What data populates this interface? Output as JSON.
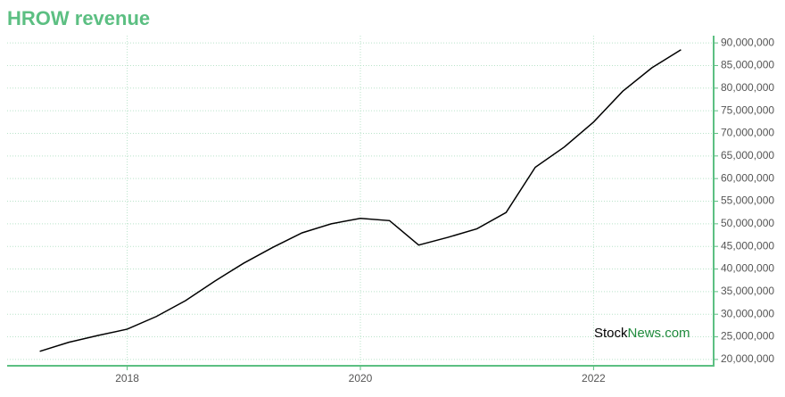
{
  "chart_data": {
    "type": "line",
    "title": "HROW revenue",
    "x": [
      2017.25,
      2017.5,
      2017.75,
      2018,
      2018.25,
      2018.5,
      2018.75,
      2019,
      2019.25,
      2019.5,
      2019.75,
      2020,
      2020.25,
      2020.5,
      2020.75,
      2021,
      2021.25,
      2021.5,
      2021.75,
      2022,
      2022.25,
      2022.5,
      2022.75
    ],
    "series": [
      {
        "color": "#000000",
        "values": [
          21800000,
          23800000,
          25300000,
          26700000,
          29500000,
          33000000,
          37300000,
          41300000,
          44800000,
          48000000,
          50000000,
          51200000,
          50700000,
          45300000,
          47000000,
          48900000,
          52500000,
          62500000,
          67000000,
          72500000,
          79300000,
          84500000,
          88500000
        ]
      }
    ],
    "xlim": [
      2016.97,
      2023.03
    ],
    "xticks": [
      2018,
      2020,
      2022
    ],
    "ylim": [
      18600000,
      91600000
    ],
    "yticks": [
      {
        "value": 20000000,
        "label": "20,000,000"
      },
      {
        "value": 25000000,
        "label": "25,000,000"
      },
      {
        "value": 30000000,
        "label": "30,000,000"
      },
      {
        "value": 35000000,
        "label": "35,000,000"
      },
      {
        "value": 40000000,
        "label": "40,000,000"
      },
      {
        "value": 45000000,
        "label": "45,000,000"
      },
      {
        "value": 50000000,
        "label": "50,000,000"
      },
      {
        "value": 55000000,
        "label": "55,000,000"
      },
      {
        "value": 60000000,
        "label": "60,000,000"
      },
      {
        "value": 65000000,
        "label": "65,000,000"
      },
      {
        "value": 70000000,
        "label": "70,000,000"
      },
      {
        "value": 75000000,
        "label": "75,000,000"
      },
      {
        "value": 80000000,
        "label": "80,000,000"
      },
      {
        "value": 85000000,
        "label": "85,000,000"
      },
      {
        "value": 90000000,
        "label": "90,000,000"
      }
    ],
    "grid": true,
    "axis_color": "#5cbf82",
    "watermark": [
      "Stock",
      "News.com"
    ],
    "watermark_colors": [
      "#000000",
      "#1f8a3c"
    ]
  }
}
